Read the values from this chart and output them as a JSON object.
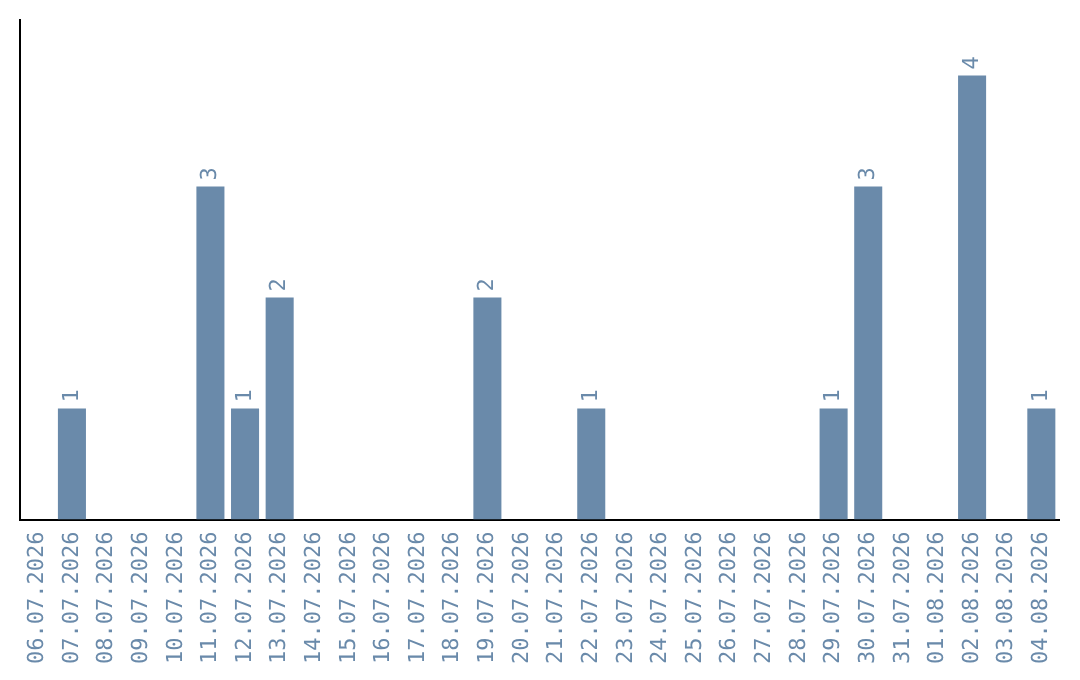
{
  "chart_data": {
    "type": "bar",
    "categories": [
      "06.07.2026",
      "07.07.2026",
      "08.07.2026",
      "09.07.2026",
      "10.07.2026",
      "11.07.2026",
      "12.07.2026",
      "13.07.2026",
      "14.07.2026",
      "15.07.2026",
      "16.07.2026",
      "17.07.2026",
      "18.07.2026",
      "19.07.2026",
      "20.07.2026",
      "21.07.2026",
      "22.07.2026",
      "23.07.2026",
      "24.07.2026",
      "25.07.2026",
      "26.07.2026",
      "27.07.2026",
      "28.07.2026",
      "29.07.2026",
      "30.07.2026",
      "31.07.2026",
      "01.08.2026",
      "02.08.2026",
      "03.08.2026",
      "04.08.2026"
    ],
    "values": [
      0,
      1,
      0,
      0,
      0,
      3,
      1,
      2,
      0,
      0,
      0,
      0,
      0,
      2,
      0,
      0,
      1,
      0,
      0,
      0,
      0,
      0,
      0,
      1,
      3,
      0,
      0,
      4,
      0,
      1
    ],
    "value_labels": [
      null,
      "1",
      null,
      null,
      null,
      "3",
      "1",
      "2",
      null,
      null,
      null,
      null,
      null,
      "2",
      null,
      null,
      "1",
      null,
      null,
      null,
      null,
      null,
      null,
      "1",
      "3",
      null,
      null,
      "4",
      null,
      "1"
    ],
    "color": "#6a8aaa",
    "grid": false,
    "legend": false,
    "tick_labels": "x"
  }
}
